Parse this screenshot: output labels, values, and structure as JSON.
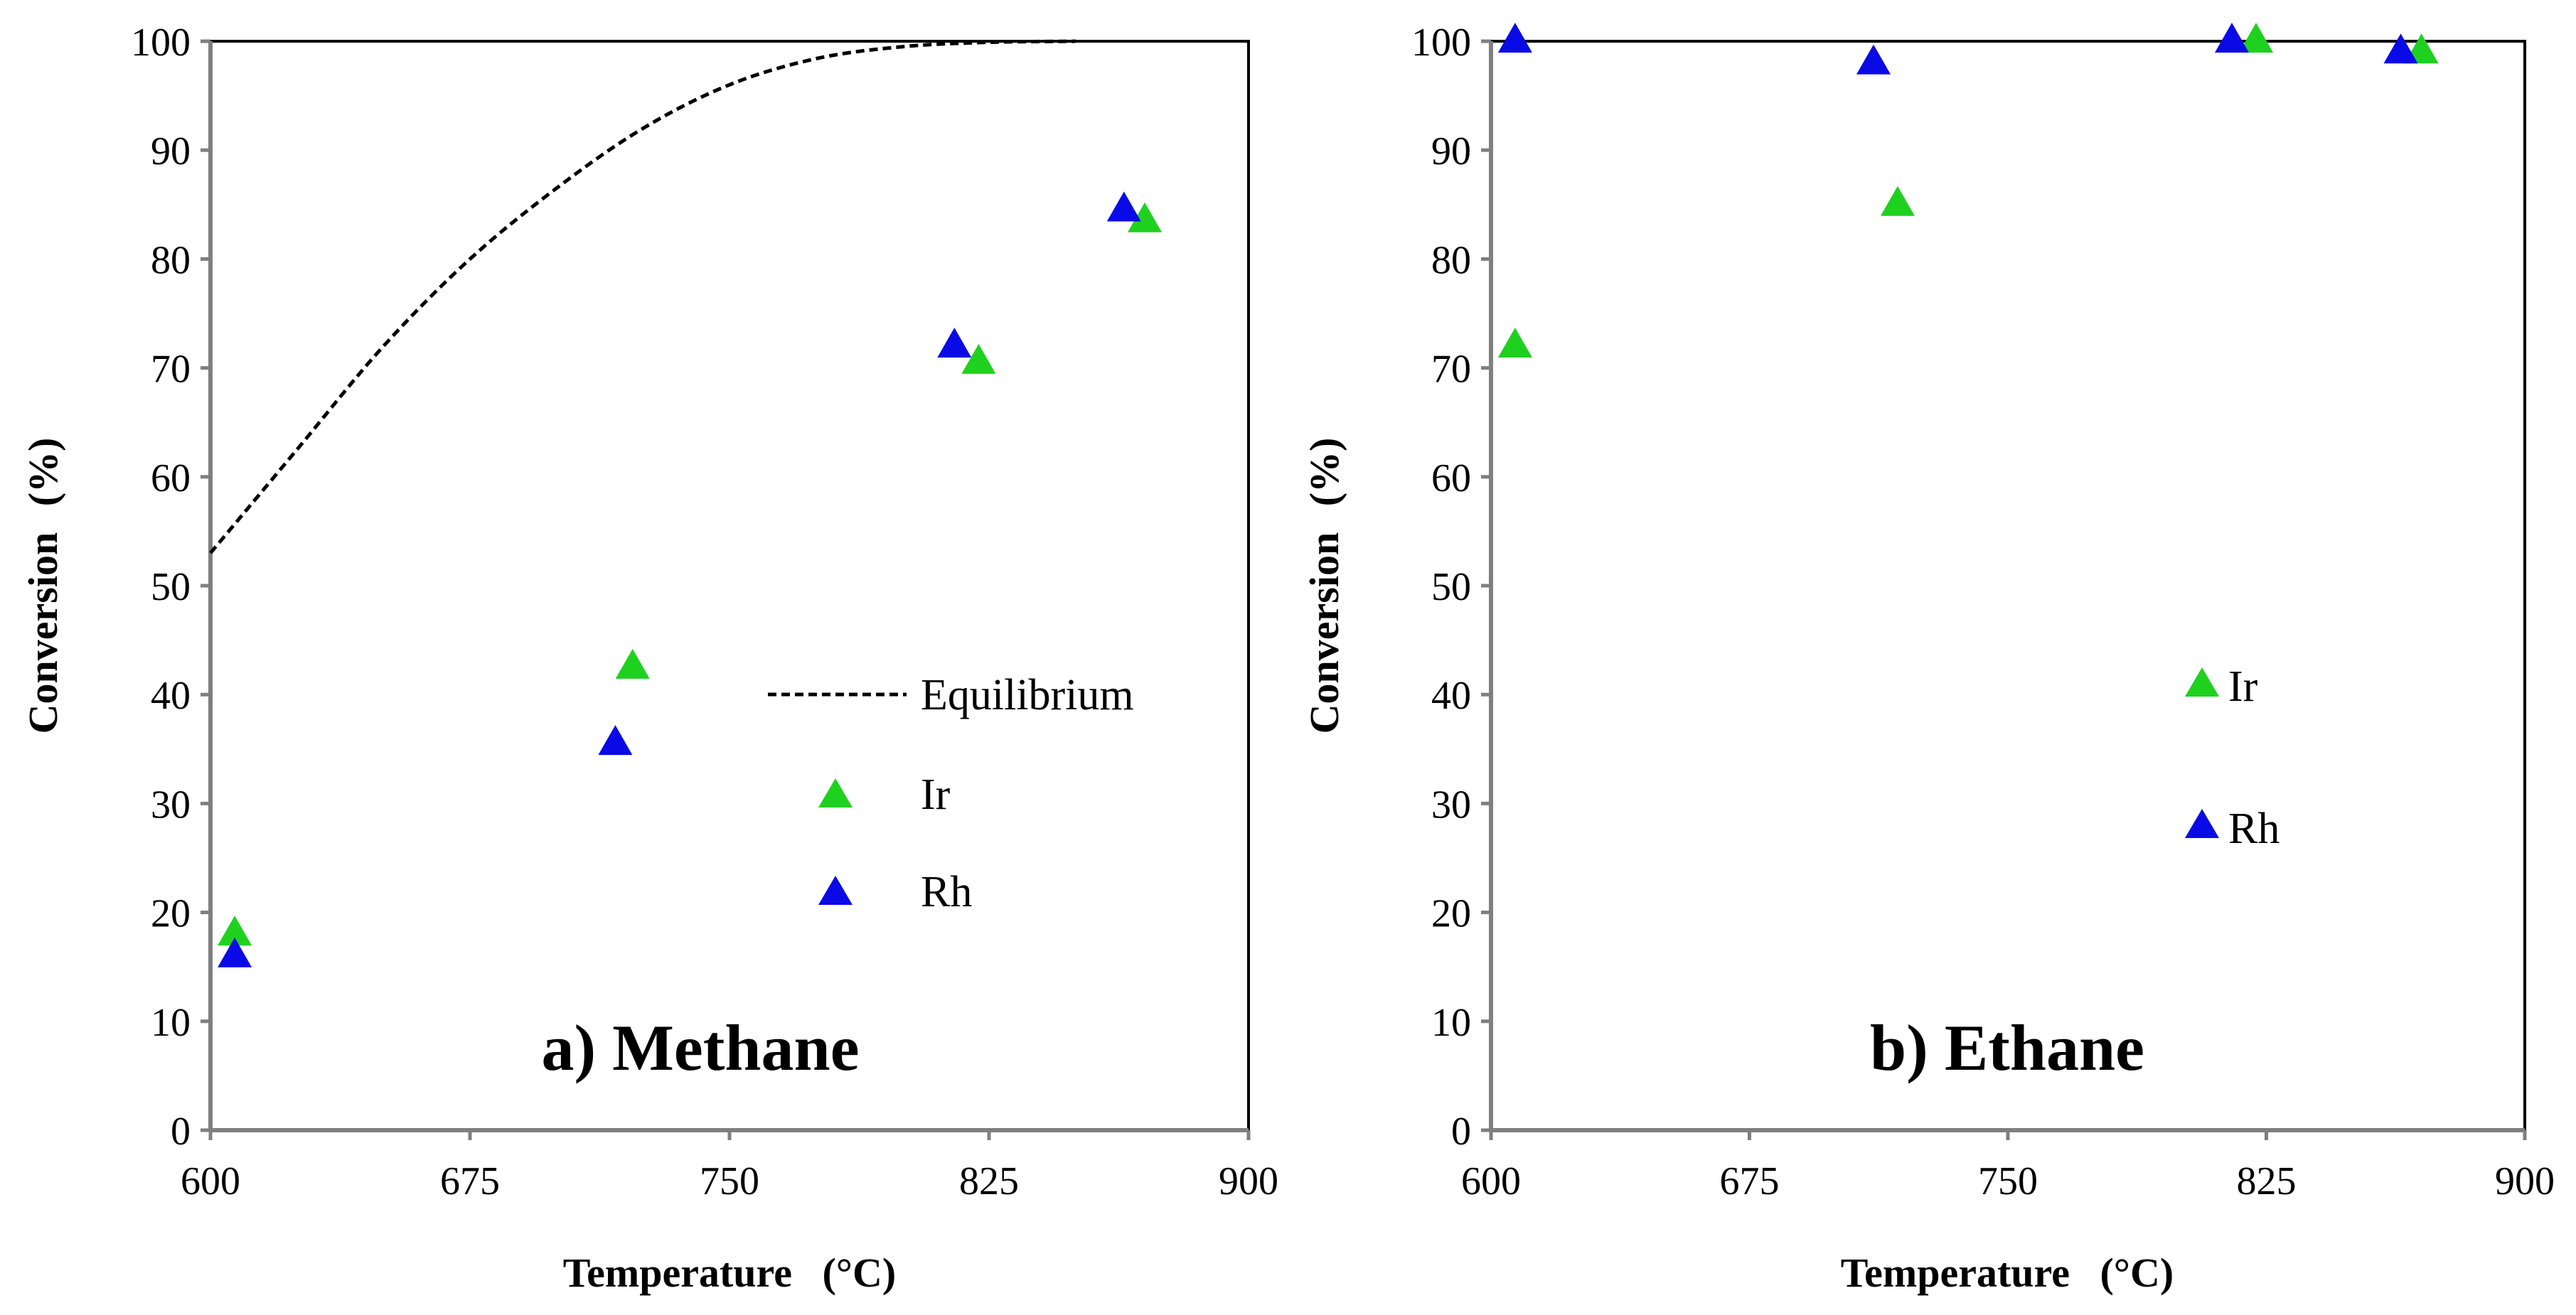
{
  "colors": {
    "ir": "#1fd11f",
    "rh": "#0a0ae6",
    "equilibrium": "#000000",
    "axis": "#7f7f7f"
  },
  "chart_data": [
    {
      "type": "scatter",
      "panel": "a",
      "title": "a) Methane",
      "xlabel": "Temperature",
      "xunit": "(°C)",
      "ylabel": "Conversion",
      "yunit": "(%)",
      "xlim": [
        600,
        900
      ],
      "ylim": [
        0,
        100
      ],
      "xticks": [
        600,
        675,
        750,
        825,
        900
      ],
      "yticks": [
        0,
        10,
        20,
        30,
        40,
        50,
        60,
        70,
        80,
        90,
        100
      ],
      "legend_position": "center-right",
      "grid": false,
      "series": [
        {
          "name": "Equilibrium",
          "kind": "line",
          "style": "dashed",
          "color": "#000000",
          "x": [
            600,
            625,
            650,
            675,
            700,
            725,
            750,
            775,
            800,
            825,
            850
          ],
          "y": [
            53,
            62.5,
            72,
            80,
            86.5,
            92,
            96,
            98.4,
            99.5,
            99.9,
            100
          ]
        },
        {
          "name": "Ir",
          "kind": "marker",
          "marker": "triangle",
          "color": "#1fd11f",
          "x": [
            607,
            722,
            822,
            870
          ],
          "y": [
            18,
            42.5,
            70.5,
            83.5
          ]
        },
        {
          "name": "Rh",
          "kind": "marker",
          "marker": "triangle",
          "color": "#0a0ae6",
          "x": [
            607,
            717,
            815,
            864
          ],
          "y": [
            16,
            35.5,
            72,
            84.5
          ]
        }
      ]
    },
    {
      "type": "scatter",
      "panel": "b",
      "title": "b) Ethane",
      "xlabel": "Temperature",
      "xunit": "(°C)",
      "ylabel": "Conversion",
      "yunit": "(%)",
      "xlim": [
        600,
        900
      ],
      "ylim": [
        0,
        100
      ],
      "xticks": [
        600,
        675,
        750,
        825,
        900
      ],
      "yticks": [
        0,
        10,
        20,
        30,
        40,
        50,
        60,
        70,
        80,
        90,
        100
      ],
      "legend_position": "center-right",
      "grid": false,
      "series": [
        {
          "name": "Ir",
          "kind": "marker",
          "marker": "triangle",
          "color": "#1fd11f",
          "x": [
            607,
            718,
            822,
            870
          ],
          "y": [
            72,
            85,
            100,
            99
          ]
        },
        {
          "name": "Rh",
          "kind": "marker",
          "marker": "triangle",
          "color": "#0a0ae6",
          "x": [
            607,
            711,
            815,
            864
          ],
          "y": [
            100,
            98,
            100,
            99
          ]
        }
      ]
    }
  ]
}
